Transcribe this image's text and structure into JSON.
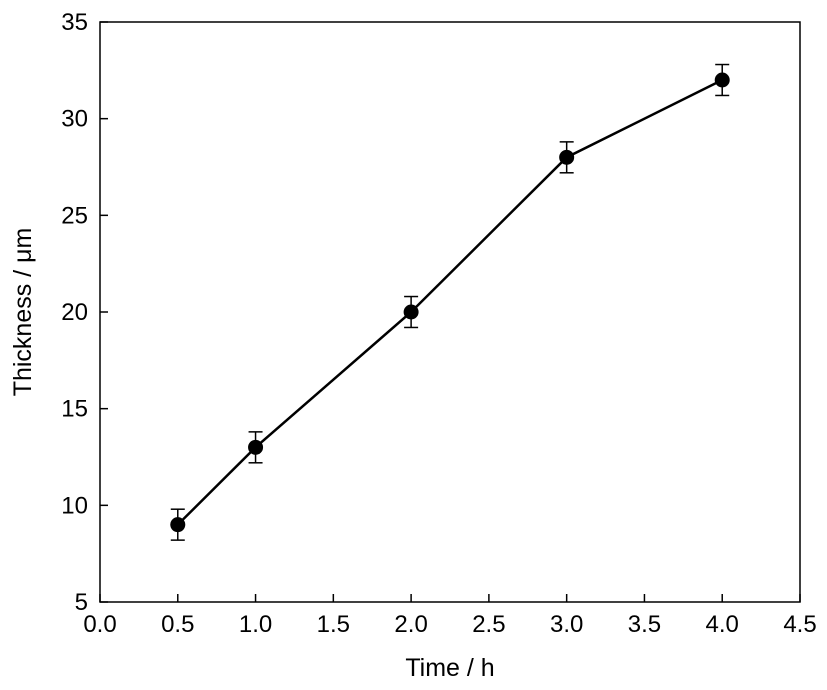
{
  "chart_data": {
    "type": "line",
    "title": "",
    "xlabel": "Time / h",
    "ylabel": "Thickness / μm",
    "xlim": [
      0.0,
      4.5
    ],
    "ylim": [
      5,
      35
    ],
    "xticks": [
      "0.0",
      "0.5",
      "1.0",
      "1.5",
      "2.0",
      "2.5",
      "3.0",
      "3.5",
      "4.0",
      "4.5"
    ],
    "yticks": [
      "5",
      "10",
      "15",
      "20",
      "25",
      "30",
      "35"
    ],
    "grid": false,
    "legend": "none",
    "series": [
      {
        "x": [
          0.5,
          1.0,
          2.0,
          3.0,
          4.0
        ],
        "y": [
          9.0,
          13.0,
          20.0,
          28.0,
          32.0
        ],
        "error": [
          0.8,
          0.8,
          0.8,
          0.8,
          0.8
        ],
        "color": "#000000",
        "marker": "filled-circle"
      }
    ]
  }
}
